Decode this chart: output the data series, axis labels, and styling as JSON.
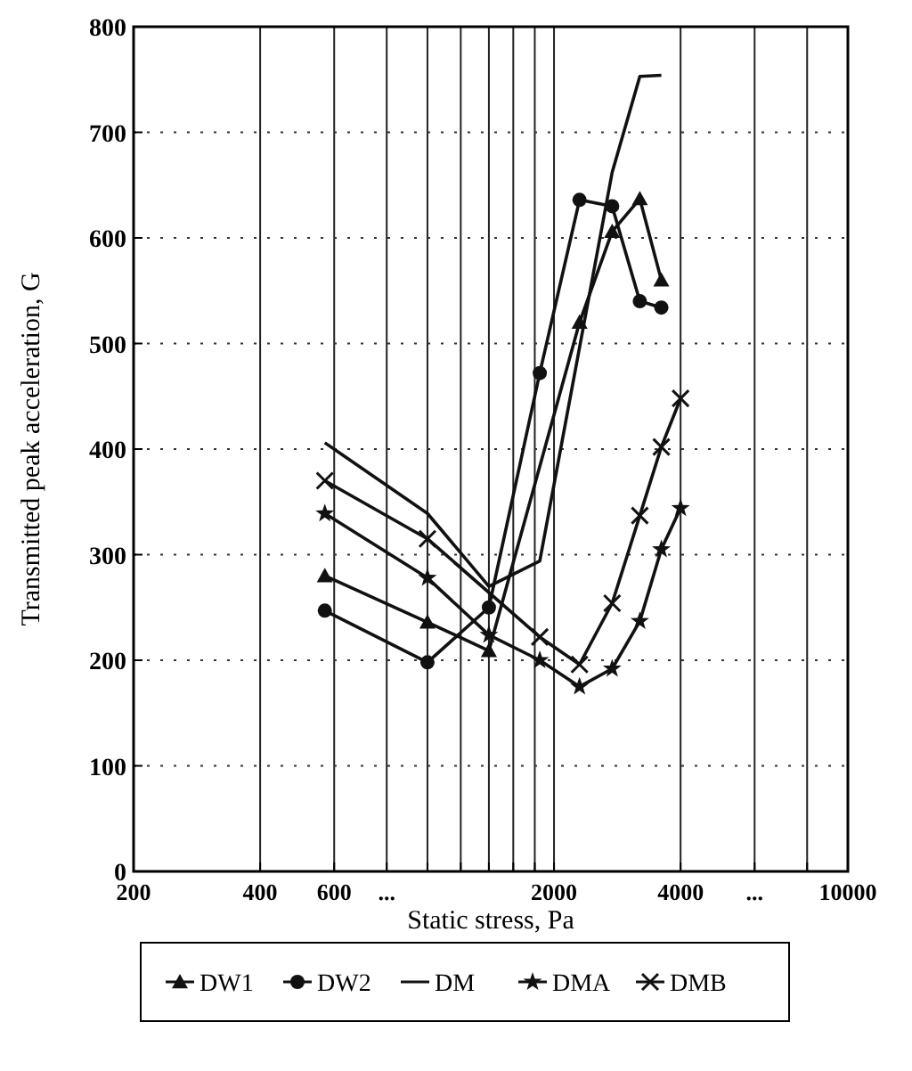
{
  "chart_data": {
    "type": "line",
    "xlabel": "Static stress, Pa",
    "ylabel": "Transmitted peak acceleration, G",
    "log": "x",
    "xlim": [
      200,
      10000
    ],
    "ylim": [
      0,
      800
    ],
    "xticks": [
      200,
      400,
      600,
      {
        "value": 800,
        "label": "..."
      },
      {
        "value": 1000,
        "label": null
      },
      {
        "value": 1200,
        "label": null
      },
      {
        "value": 1400,
        "label": null
      },
      {
        "value": 1600,
        "label": null
      },
      {
        "value": 1800,
        "label": null
      },
      2000,
      4000,
      {
        "value": 6000,
        "label": "..."
      },
      {
        "value": 8000,
        "label": null
      },
      10000
    ],
    "yticks": [
      0,
      100,
      200,
      300,
      400,
      500,
      600,
      700,
      800
    ],
    "grid": true,
    "legend": "bottom",
    "series": [
      {
        "name": "DW1",
        "color": "#111111",
        "marker": "triangle",
        "x": [
          570,
          1000,
          1400,
          2300,
          2750,
          3200,
          3600
        ],
        "values": [
          280,
          236,
          209,
          520,
          606,
          637,
          560
        ]
      },
      {
        "name": "DW2",
        "color": "#111111",
        "marker": "circle",
        "x": [
          570,
          1000,
          1400,
          1850,
          2300,
          2750,
          3200,
          3600
        ],
        "values": [
          247,
          198,
          250,
          472,
          636,
          630,
          540,
          534
        ]
      },
      {
        "name": "DM",
        "color": "#111111",
        "marker": "none",
        "x": [
          570,
          1000,
          1400,
          1850,
          2750,
          3200,
          3600
        ],
        "values": [
          406,
          339,
          270,
          294,
          662,
          753,
          754
        ]
      },
      {
        "name": "DMA",
        "color": "#111111",
        "marker": "star",
        "x": [
          570,
          1000,
          1400,
          1850,
          2300,
          2750,
          3200,
          3600,
          4000
        ],
        "values": [
          339,
          278,
          224,
          200,
          175,
          192,
          237,
          305,
          344
        ]
      },
      {
        "name": "DMB",
        "color": "#111111",
        "marker": "cross",
        "x": [
          570,
          1000,
          1400,
          1850,
          2300,
          2750,
          3200,
          3600,
          4000
        ],
        "values": [
          370,
          315,
          null,
          222,
          196,
          254,
          337,
          402,
          448
        ]
      }
    ]
  }
}
